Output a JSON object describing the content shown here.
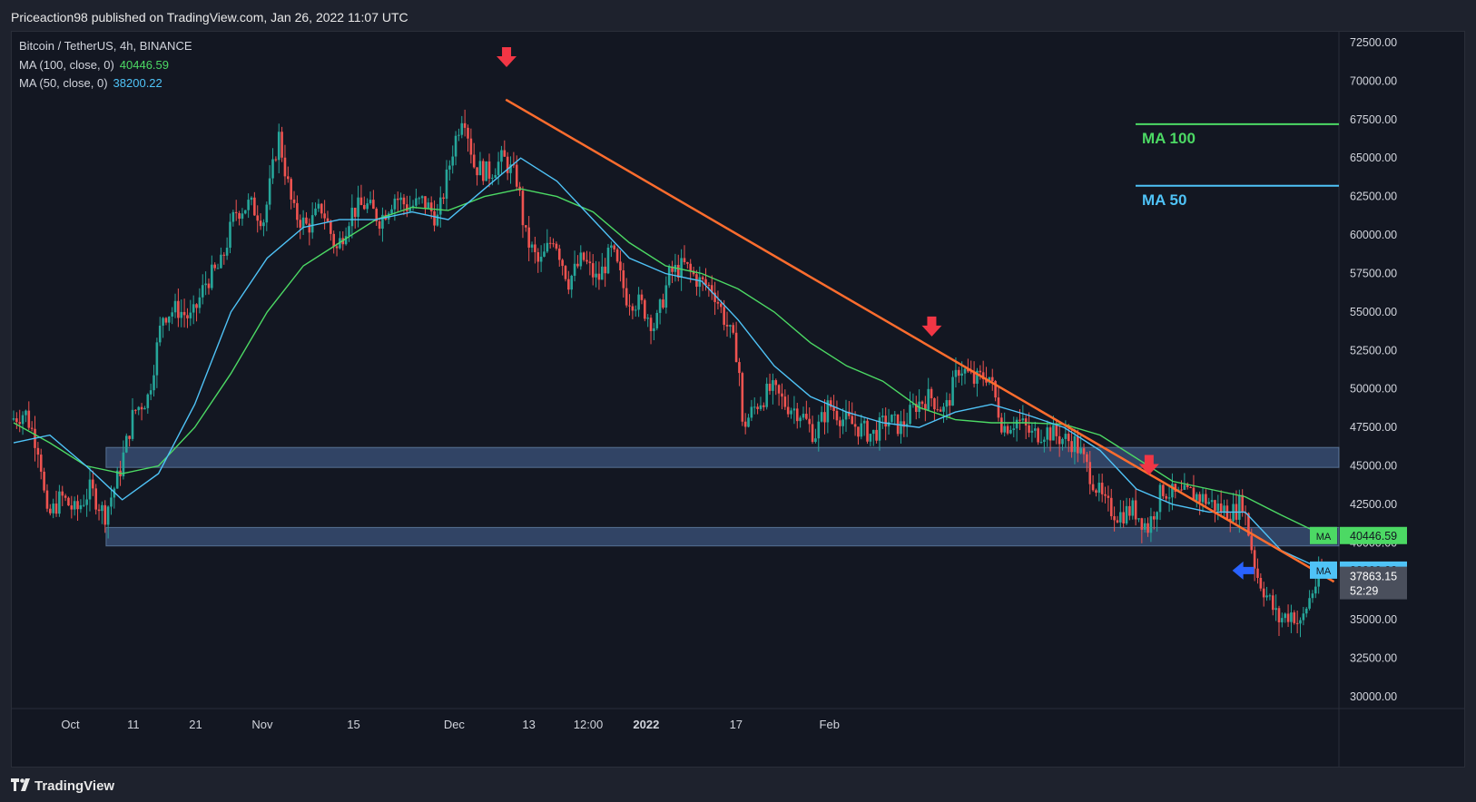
{
  "header": {
    "published": "Priceaction98 published on TradingView.com, Jan 26, 2022 11:07 UTC"
  },
  "legend": {
    "symbol": "Bitcoin / TetherUS, 4h, BINANCE",
    "ma100_label": "MA (100, close, 0)",
    "ma100_value": "40446.59",
    "ma50_label": "MA (50, close, 0)",
    "ma50_value": "38200.22"
  },
  "footer": {
    "brand": "TradingView"
  },
  "colors": {
    "background": "#131722",
    "up": "#26a69a",
    "down": "#ef5350",
    "ma100": "#4cd964",
    "ma50": "#4fc3f7",
    "trendline": "#ff6d2e",
    "zone": "#4a6a9c",
    "arrow_red": "#f23645",
    "arrow_blue": "#2962ff"
  },
  "chart_data": {
    "type": "candlestick",
    "ylim": [
      30000,
      72500
    ],
    "y_ticks": [
      "72500.00",
      "70000.00",
      "67500.00",
      "65000.00",
      "62500.00",
      "60000.00",
      "57500.00",
      "55000.00",
      "52500.00",
      "50000.00",
      "47500.00",
      "45000.00",
      "42500.00",
      "40000.00",
      "37500.00",
      "35000.00",
      "32500.00",
      "30000.00"
    ],
    "x_ticks": [
      {
        "label": "Oct",
        "x": 0.077
      },
      {
        "label": "11",
        "x": 0.164
      },
      {
        "label": "21",
        "x": 0.25
      },
      {
        "label": "Nov",
        "x": 0.342
      },
      {
        "label": "15",
        "x": 0.468
      },
      {
        "label": "Dec",
        "x": 0.607
      },
      {
        "label": "13",
        "x": 0.71
      },
      {
        "label": "12:00",
        "x": 0.792
      },
      {
        "label": "2022",
        "x": 0.872
      },
      {
        "label": "17",
        "x": 0.996
      },
      {
        "label": "Feb",
        "x": 1.125
      }
    ],
    "x_tick_bold": "2022",
    "price_path": [
      [
        0.0,
        48000
      ],
      [
        0.02,
        48500
      ],
      [
        0.04,
        46000
      ],
      [
        0.05,
        41500
      ],
      [
        0.07,
        43000
      ],
      [
        0.09,
        42000
      ],
      [
        0.11,
        43500
      ],
      [
        0.13,
        41800
      ],
      [
        0.15,
        44500
      ],
      [
        0.17,
        48500
      ],
      [
        0.19,
        49500
      ],
      [
        0.21,
        54800
      ],
      [
        0.23,
        55200
      ],
      [
        0.25,
        54500
      ],
      [
        0.27,
        57000
      ],
      [
        0.29,
        58000
      ],
      [
        0.31,
        61500
      ],
      [
        0.33,
        62000
      ],
      [
        0.35,
        61000
      ],
      [
        0.37,
        66500
      ],
      [
        0.39,
        61500
      ],
      [
        0.41,
        60500
      ],
      [
        0.43,
        61800
      ],
      [
        0.45,
        59000
      ],
      [
        0.47,
        61500
      ],
      [
        0.49,
        62000
      ],
      [
        0.51,
        61000
      ],
      [
        0.53,
        62500
      ],
      [
        0.55,
        61800
      ],
      [
        0.57,
        62200
      ],
      [
        0.59,
        61000
      ],
      [
        0.61,
        65500
      ],
      [
        0.625,
        68200
      ],
      [
        0.64,
        64500
      ],
      [
        0.66,
        64000
      ],
      [
        0.68,
        65000
      ],
      [
        0.7,
        63500
      ],
      [
        0.71,
        60000
      ],
      [
        0.73,
        58000
      ],
      [
        0.75,
        60000
      ],
      [
        0.77,
        57000
      ],
      [
        0.79,
        58500
      ],
      [
        0.81,
        57000
      ],
      [
        0.83,
        59000
      ],
      [
        0.85,
        56000
      ],
      [
        0.87,
        55500
      ],
      [
        0.89,
        54000
      ],
      [
        0.91,
        57500
      ],
      [
        0.93,
        58000
      ],
      [
        0.95,
        57000
      ],
      [
        0.97,
        56500
      ],
      [
        0.99,
        54000
      ],
      [
        1.005,
        52000
      ],
      [
        1.01,
        47500
      ],
      [
        1.03,
        49000
      ],
      [
        1.05,
        50000
      ],
      [
        1.07,
        49000
      ],
      [
        1.09,
        48500
      ],
      [
        1.11,
        47000
      ],
      [
        1.13,
        49000
      ],
      [
        1.15,
        48000
      ],
      [
        1.17,
        47500
      ],
      [
        1.19,
        47000
      ],
      [
        1.21,
        48000
      ],
      [
        1.23,
        47500
      ],
      [
        1.25,
        49000
      ],
      [
        1.27,
        49500
      ],
      [
        1.29,
        48500
      ],
      [
        1.31,
        51500
      ],
      [
        1.33,
        50500
      ],
      [
        1.35,
        51000
      ],
      [
        1.37,
        47500
      ],
      [
        1.39,
        48000
      ],
      [
        1.41,
        47000
      ],
      [
        1.43,
        47300
      ],
      [
        1.45,
        46800
      ],
      [
        1.47,
        46500
      ],
      [
        1.49,
        44500
      ],
      [
        1.51,
        42500
      ],
      [
        1.53,
        41800
      ],
      [
        1.55,
        42200
      ],
      [
        1.57,
        41000
      ],
      [
        1.59,
        43500
      ],
      [
        1.61,
        43000
      ],
      [
        1.63,
        43200
      ],
      [
        1.65,
        42800
      ],
      [
        1.67,
        42200
      ],
      [
        1.69,
        42000
      ],
      [
        1.7,
        42800
      ],
      [
        1.71,
        40500
      ],
      [
        1.72,
        38000
      ],
      [
        1.74,
        36000
      ],
      [
        1.75,
        35000
      ],
      [
        1.77,
        35500
      ],
      [
        1.78,
        34500
      ],
      [
        1.79,
        36000
      ],
      [
        1.8,
        37200
      ],
      [
        1.81,
        37863
      ]
    ],
    "ma100_path": [
      [
        0.0,
        47800
      ],
      [
        0.05,
        46500
      ],
      [
        0.1,
        45000
      ],
      [
        0.15,
        44500
      ],
      [
        0.2,
        45000
      ],
      [
        0.25,
        47500
      ],
      [
        0.3,
        51000
      ],
      [
        0.35,
        55000
      ],
      [
        0.4,
        58000
      ],
      [
        0.45,
        59500
      ],
      [
        0.5,
        61000
      ],
      [
        0.55,
        61800
      ],
      [
        0.6,
        61600
      ],
      [
        0.65,
        62500
      ],
      [
        0.7,
        63000
      ],
      [
        0.75,
        62500
      ],
      [
        0.8,
        61500
      ],
      [
        0.85,
        59500
      ],
      [
        0.9,
        58000
      ],
      [
        0.95,
        57500
      ],
      [
        1.0,
        56500
      ],
      [
        1.05,
        55000
      ],
      [
        1.1,
        53000
      ],
      [
        1.15,
        51500
      ],
      [
        1.2,
        50500
      ],
      [
        1.25,
        48800
      ],
      [
        1.3,
        48000
      ],
      [
        1.35,
        47800
      ],
      [
        1.4,
        47800
      ],
      [
        1.45,
        47700
      ],
      [
        1.5,
        47000
      ],
      [
        1.55,
        45500
      ],
      [
        1.6,
        44000
      ],
      [
        1.65,
        43500
      ],
      [
        1.7,
        43000
      ],
      [
        1.75,
        41800
      ],
      [
        1.81,
        40447
      ]
    ],
    "ma50_path": [
      [
        0.0,
        46500
      ],
      [
        0.05,
        47000
      ],
      [
        0.1,
        45000
      ],
      [
        0.15,
        42800
      ],
      [
        0.2,
        44500
      ],
      [
        0.25,
        49000
      ],
      [
        0.3,
        55000
      ],
      [
        0.35,
        58500
      ],
      [
        0.4,
        60500
      ],
      [
        0.45,
        61000
      ],
      [
        0.5,
        61000
      ],
      [
        0.55,
        61500
      ],
      [
        0.6,
        61000
      ],
      [
        0.65,
        63000
      ],
      [
        0.7,
        65000
      ],
      [
        0.75,
        63500
      ],
      [
        0.8,
        61000
      ],
      [
        0.85,
        58500
      ],
      [
        0.9,
        57500
      ],
      [
        0.95,
        57000
      ],
      [
        1.0,
        54500
      ],
      [
        1.05,
        51500
      ],
      [
        1.1,
        49500
      ],
      [
        1.15,
        48500
      ],
      [
        1.2,
        47800
      ],
      [
        1.25,
        47500
      ],
      [
        1.3,
        48500
      ],
      [
        1.35,
        49000
      ],
      [
        1.4,
        48300
      ],
      [
        1.45,
        47500
      ],
      [
        1.5,
        46000
      ],
      [
        1.55,
        43500
      ],
      [
        1.6,
        42500
      ],
      [
        1.65,
        42000
      ],
      [
        1.7,
        42000
      ],
      [
        1.75,
        39500
      ],
      [
        1.81,
        38200
      ]
    ],
    "trendline": {
      "from": [
        0.682,
        68800
      ],
      "to": [
        1.725,
        39300
      ]
    },
    "support_zones": [
      {
        "top": 46200,
        "bottom": 44900,
        "x_from": 0.07,
        "x_to": 1.81
      },
      {
        "top": 41000,
        "bottom": 39800,
        "x_from": 0.07,
        "x_to": 1.81
      }
    ],
    "red_arrows": [
      {
        "x": 0.683,
        "price": 71500
      },
      {
        "x": 1.27,
        "price": 54000
      },
      {
        "x": 1.57,
        "price": 45000
      }
    ],
    "blue_arrow": {
      "x": 1.68,
      "price": 38200
    },
    "annotations": [
      {
        "text": "MA 100",
        "color": "#4cd964",
        "price": 67200
      },
      {
        "text": "MA 50",
        "color": "#4fc3f7",
        "price": 63200
      }
    ],
    "price_tags": [
      {
        "badge": "MA",
        "value": "40446.59",
        "price": 40447,
        "color": "#4cd964"
      },
      {
        "badge": "MA",
        "value": "38200.22",
        "price": 38200,
        "color": "#4fc3f7"
      }
    ],
    "last_price": {
      "value": "37863.15",
      "countdown": "52:29",
      "price": 37863
    }
  }
}
